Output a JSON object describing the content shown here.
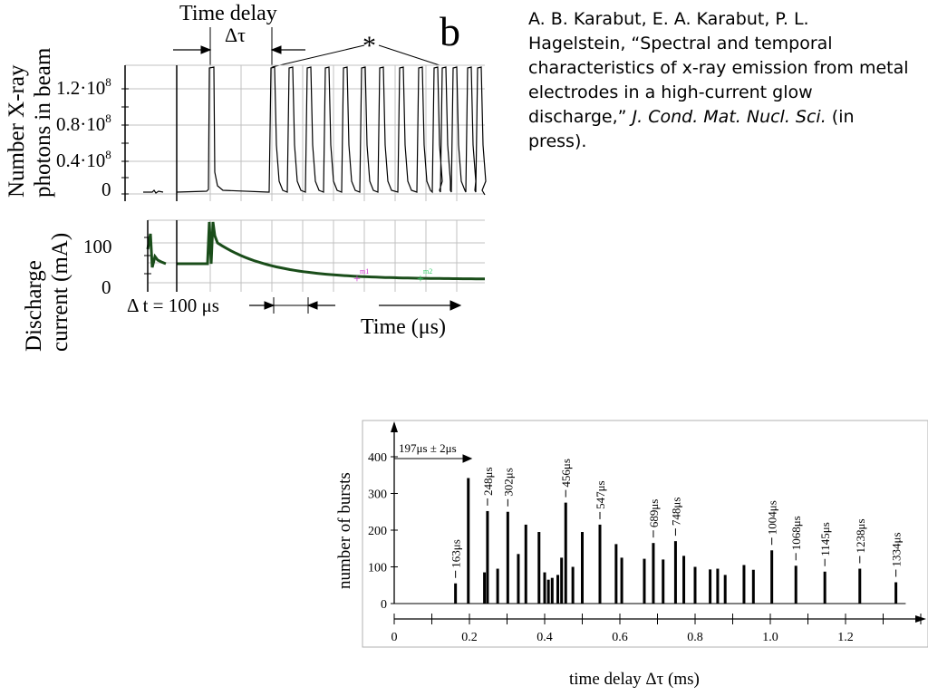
{
  "citation": {
    "authors": "A. B. Karabut, E. A. Karabut, P. L. Hagelstein, ",
    "title_quoted": "“Spectral and temporal characteristics of x-ray emission from metal electrodes in a high-current glow discharge,” ",
    "journal": "J. Cond. Mat. Nucl. Sci.",
    "status": " (in press)."
  },
  "top_panel": {
    "panel_letter": "b",
    "time_delay_label": "Time delay",
    "delta_tau_label": "Δτ",
    "asterisk": "*",
    "xray_ylabel_line1": "Number X-ray",
    "xray_ylabel_line2": "photons in beam",
    "xray_ticks": [
      "1.2·10",
      "0.8·10",
      "0.4·10",
      "0"
    ],
    "xray_tick_exponent": "8",
    "current_ylabel_line1": "Discharge",
    "current_ylabel_line2": "current (mA)",
    "current_ticks": [
      "100",
      "0"
    ],
    "dt_label": "Δ t = 100 μs",
    "time_label": "Time (μs)",
    "markers": [
      "m1",
      "m2"
    ],
    "colors": {
      "trace": "#000000",
      "current": "#1a4d1a",
      "m1": "#cc33cc",
      "m2": "#33cc66",
      "grid": "#c0c0c0"
    }
  },
  "chart_data": {
    "type": "bar",
    "xlabel": "time delay Δτ (ms)",
    "ylabel": "number of bursts",
    "xlim": [
      0,
      1.4
    ],
    "ylim": [
      0,
      420
    ],
    "xticks": [
      "0",
      "0.2",
      "0.4",
      "0.6",
      "0.8",
      "1.0",
      "1.2"
    ],
    "yticks": [
      "0",
      "100",
      "200",
      "300",
      "400"
    ],
    "bracket_label": "197μs ± 2μs",
    "bars": [
      {
        "x": 0.163,
        "y": 55
      },
      {
        "x": 0.197,
        "y": 342
      },
      {
        "x": 0.24,
        "y": 85
      },
      {
        "x": 0.248,
        "y": 252
      },
      {
        "x": 0.275,
        "y": 95
      },
      {
        "x": 0.302,
        "y": 250
      },
      {
        "x": 0.33,
        "y": 135
      },
      {
        "x": 0.35,
        "y": 215
      },
      {
        "x": 0.385,
        "y": 195
      },
      {
        "x": 0.4,
        "y": 85
      },
      {
        "x": 0.41,
        "y": 65
      },
      {
        "x": 0.42,
        "y": 70
      },
      {
        "x": 0.435,
        "y": 78
      },
      {
        "x": 0.445,
        "y": 125
      },
      {
        "x": 0.456,
        "y": 275
      },
      {
        "x": 0.475,
        "y": 100
      },
      {
        "x": 0.5,
        "y": 195
      },
      {
        "x": 0.547,
        "y": 215
      },
      {
        "x": 0.59,
        "y": 162
      },
      {
        "x": 0.605,
        "y": 125
      },
      {
        "x": 0.665,
        "y": 122
      },
      {
        "x": 0.689,
        "y": 165
      },
      {
        "x": 0.715,
        "y": 120
      },
      {
        "x": 0.748,
        "y": 170
      },
      {
        "x": 0.77,
        "y": 130
      },
      {
        "x": 0.8,
        "y": 100
      },
      {
        "x": 0.84,
        "y": 93
      },
      {
        "x": 0.86,
        "y": 95
      },
      {
        "x": 0.88,
        "y": 78
      },
      {
        "x": 0.93,
        "y": 105
      },
      {
        "x": 0.955,
        "y": 92
      },
      {
        "x": 1.004,
        "y": 145
      },
      {
        "x": 1.068,
        "y": 103
      },
      {
        "x": 1.145,
        "y": 87
      },
      {
        "x": 1.238,
        "y": 95
      },
      {
        "x": 1.334,
        "y": 58
      }
    ],
    "annotations": [
      {
        "label": "163μs",
        "x": 0.163,
        "y": 55
      },
      {
        "label": "248μs",
        "x": 0.248,
        "y": 252
      },
      {
        "label": "302μs",
        "x": 0.302,
        "y": 250
      },
      {
        "label": "456μs",
        "x": 0.456,
        "y": 275
      },
      {
        "label": "547μs",
        "x": 0.547,
        "y": 215
      },
      {
        "label": "689μs",
        "x": 0.689,
        "y": 165
      },
      {
        "label": "748μs",
        "x": 0.748,
        "y": 170
      },
      {
        "label": "1004μs",
        "x": 1.004,
        "y": 145
      },
      {
        "label": "1068μs",
        "x": 1.068,
        "y": 103
      },
      {
        "label": "1145μs",
        "x": 1.145,
        "y": 87
      },
      {
        "label": "1238μs",
        "x": 1.238,
        "y": 95
      },
      {
        "label": "1334μs",
        "x": 1.334,
        "y": 58
      }
    ]
  }
}
